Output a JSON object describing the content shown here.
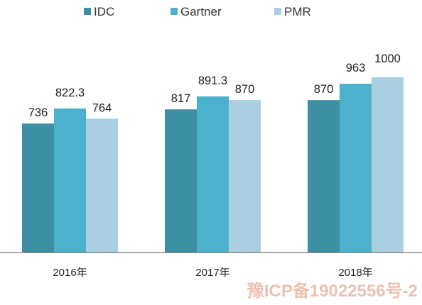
{
  "chart_data": {
    "type": "bar",
    "categories": [
      "2016年",
      "2017年",
      "2018年"
    ],
    "series": [
      {
        "name": "IDC",
        "color": "#3d8fa3",
        "values": [
          736,
          817,
          870
        ]
      },
      {
        "name": "Gartner",
        "color": "#4bb1cc",
        "values": [
          822.3,
          891.3,
          963
        ]
      },
      {
        "name": "PMR",
        "color": "#a9cfe0",
        "values": [
          764,
          870,
          1000
        ]
      }
    ],
    "value_labels": [
      [
        "736",
        "817",
        "870"
      ],
      [
        "822.3",
        "891.3",
        "963"
      ],
      [
        "764",
        "870",
        "1000"
      ]
    ],
    "ylim": [
      0,
      1000
    ],
    "legend_position": "top",
    "grid": false,
    "title": "",
    "xlabel": "",
    "ylabel": ""
  },
  "watermark": "豫ICP备19022556号-2"
}
